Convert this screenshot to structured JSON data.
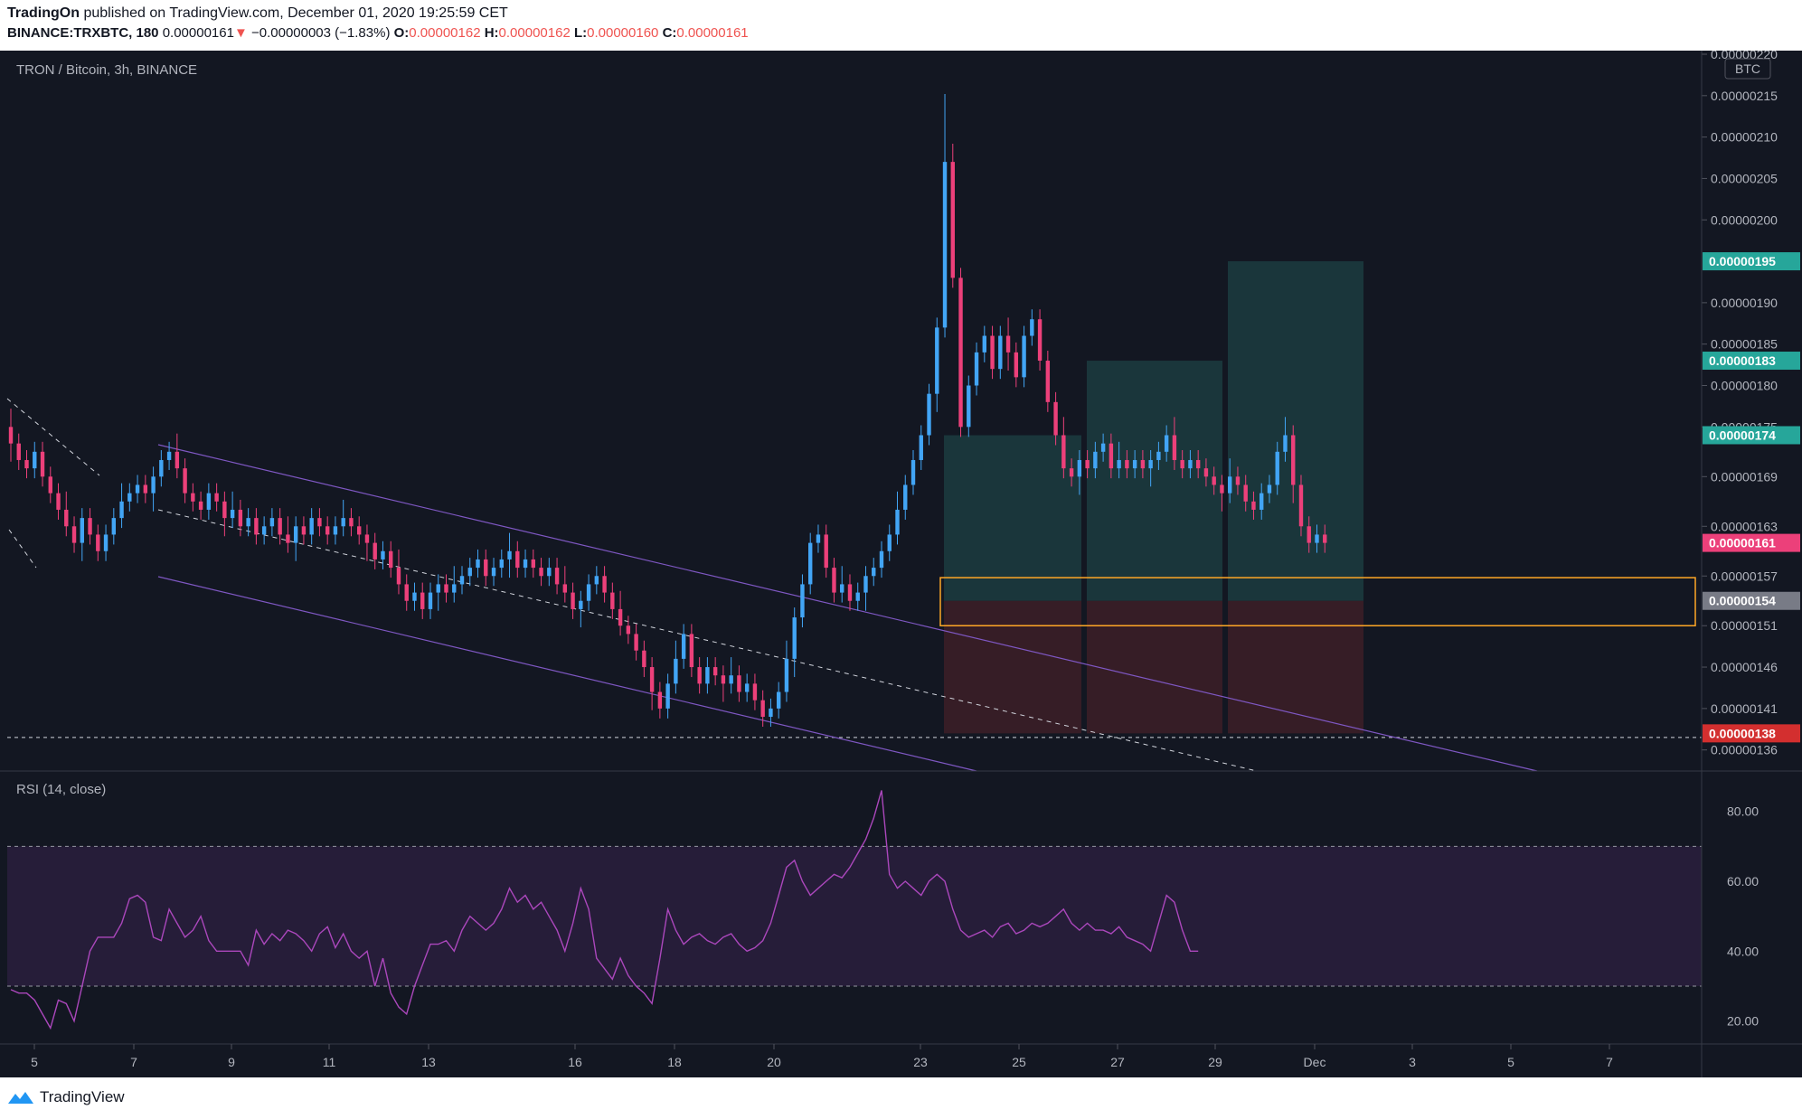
{
  "header": {
    "publisher": "TradingOn",
    "published_text": "published on TradingView.com, December 01, 2020 19:25:59 CET",
    "symbol_line": {
      "symbol": "BINANCE:TRXBTC, 180",
      "last": "0.00000161",
      "arrow": "▼",
      "change": "−0.00000003 (−1.83%)",
      "o_label": "O:",
      "o": "0.00000162",
      "h_label": "H:",
      "h": "0.00000162",
      "l_label": "L:",
      "l": "0.00000160",
      "c_label": "C:",
      "c": "0.00000161"
    }
  },
  "chart_data": {
    "type": "candlestick",
    "title": "TRON / Bitcoin, 3h, BINANCE",
    "currency_badge": "BTC",
    "colors": {
      "background": "#131722",
      "up": "#42a5f5",
      "down": "#ec407a",
      "grid": "#2a2e39",
      "channel": "#7e57c2",
      "profit_zone": "#1d4244",
      "loss_zone": "#3d1e27",
      "support_box": "#ffa726",
      "rsi_line": "#ab47bc",
      "rsi_band": "#2a1f3d"
    },
    "y_axis": {
      "range": [
        1.34e-06,
        2.2e-06
      ],
      "ticks": [
        "0.00000220",
        "0.00000215",
        "0.00000210",
        "0.00000205",
        "0.00000200",
        "0.00000190",
        "0.00000185",
        "0.00000180",
        "0.00000175",
        "0.00000169",
        "0.00000163",
        "0.00000157",
        "0.00000151",
        "0.00000146",
        "0.00000141",
        "0.00000136"
      ]
    },
    "price_tags": [
      {
        "label": "0.00000195",
        "value": 1.95e-06,
        "color": "#26a69a"
      },
      {
        "label": "0.00000183",
        "value": 1.83e-06,
        "color": "#26a69a"
      },
      {
        "label": "0.00000174",
        "value": 1.74e-06,
        "color": "#26a69a"
      },
      {
        "label": "0.00000161",
        "value": 1.61e-06,
        "color": "#ec407a"
      },
      {
        "label": "0.00000154",
        "value": 1.54e-06,
        "color": "#787b86"
      },
      {
        "label": "0.00000138",
        "value": 1.38e-06,
        "color": "#d32f2f"
      }
    ],
    "x_axis": {
      "labels": [
        "5",
        "7",
        "9",
        "11",
        "13",
        "16",
        "18",
        "20",
        "23",
        "25",
        "27",
        "29",
        "Dec",
        "3",
        "5",
        "7"
      ]
    },
    "ohlc_close_path_note": "",
    "closes": [
      1.73,
      1.71,
      1.7,
      1.72,
      1.69,
      1.67,
      1.65,
      1.63,
      1.61,
      1.64,
      1.62,
      1.6,
      1.62,
      1.64,
      1.66,
      1.67,
      1.68,
      1.67,
      1.69,
      1.71,
      1.72,
      1.7,
      1.67,
      1.66,
      1.65,
      1.67,
      1.66,
      1.64,
      1.65,
      1.63,
      1.64,
      1.62,
      1.63,
      1.64,
      1.62,
      1.61,
      1.63,
      1.62,
      1.64,
      1.63,
      1.62,
      1.63,
      1.64,
      1.63,
      1.62,
      1.61,
      1.59,
      1.6,
      1.58,
      1.56,
      1.54,
      1.55,
      1.53,
      1.55,
      1.56,
      1.55,
      1.56,
      1.57,
      1.58,
      1.59,
      1.57,
      1.58,
      1.59,
      1.6,
      1.58,
      1.59,
      1.58,
      1.57,
      1.58,
      1.56,
      1.55,
      1.53,
      1.54,
      1.56,
      1.57,
      1.55,
      1.53,
      1.51,
      1.5,
      1.48,
      1.46,
      1.43,
      1.41,
      1.44,
      1.47,
      1.5,
      1.46,
      1.44,
      1.46,
      1.45,
      1.44,
      1.45,
      1.43,
      1.44,
      1.42,
      1.4,
      1.41,
      1.43,
      1.47,
      1.52,
      1.56,
      1.61,
      1.62,
      1.58,
      1.55,
      1.56,
      1.54,
      1.55,
      1.57,
      1.58,
      1.6,
      1.62,
      1.65,
      1.68,
      1.71,
      1.74,
      1.79,
      1.87,
      2.07,
      1.93,
      1.75,
      1.8,
      1.84,
      1.86,
      1.82,
      1.86,
      1.84,
      1.81,
      1.86,
      1.88,
      1.83,
      1.78,
      1.74,
      1.7,
      1.69,
      1.71,
      1.7,
      1.72,
      1.73,
      1.7,
      1.71,
      1.7,
      1.71,
      1.7,
      1.71,
      1.72,
      1.74,
      1.71,
      1.7,
      1.71,
      1.7,
      1.69,
      1.68,
      1.67,
      1.69,
      1.68,
      1.66,
      1.65,
      1.67,
      1.68,
      1.72,
      1.74,
      1.68,
      1.63,
      1.61,
      1.62,
      1.61
    ],
    "rsi": {
      "label": "RSI (14, close)",
      "range": [
        15,
        90
      ],
      "upper": 70,
      "lower": 30,
      "ticks": [
        "80.00",
        "60.00",
        "40.00",
        "20.00"
      ],
      "values": [
        29,
        28,
        28,
        26,
        22,
        18,
        26,
        25,
        20,
        30,
        40,
        44,
        44,
        44,
        48,
        55,
        56,
        54,
        44,
        43,
        52,
        48,
        44,
        46,
        50,
        43,
        40,
        40,
        40,
        40,
        36,
        46,
        42,
        45,
        43,
        46,
        45,
        43,
        40,
        45,
        47,
        41,
        45,
        40,
        38,
        40,
        30,
        38,
        28,
        24,
        22,
        30,
        36,
        42,
        42,
        43,
        40,
        46,
        50,
        48,
        46,
        48,
        52,
        58,
        54,
        56,
        52,
        54,
        50,
        46,
        40,
        48,
        58,
        52,
        38,
        35,
        32,
        38,
        33,
        30,
        28,
        25,
        38,
        52,
        46,
        42,
        44,
        45,
        43,
        42,
        44,
        45,
        42,
        40,
        41,
        43,
        48,
        56,
        64,
        66,
        60,
        56,
        58,
        60,
        62,
        61,
        64,
        68,
        72,
        78,
        86,
        62,
        58,
        60,
        58,
        56,
        60,
        62,
        60,
        52,
        46,
        44,
        45,
        46,
        44,
        47,
        48,
        45,
        46,
        48,
        47,
        48,
        50,
        52,
        48,
        46,
        48,
        46,
        46,
        45,
        47,
        44,
        43,
        42,
        40,
        48,
        56,
        54,
        46,
        40,
        40
      ]
    }
  },
  "footer": {
    "brand": "TradingView"
  }
}
